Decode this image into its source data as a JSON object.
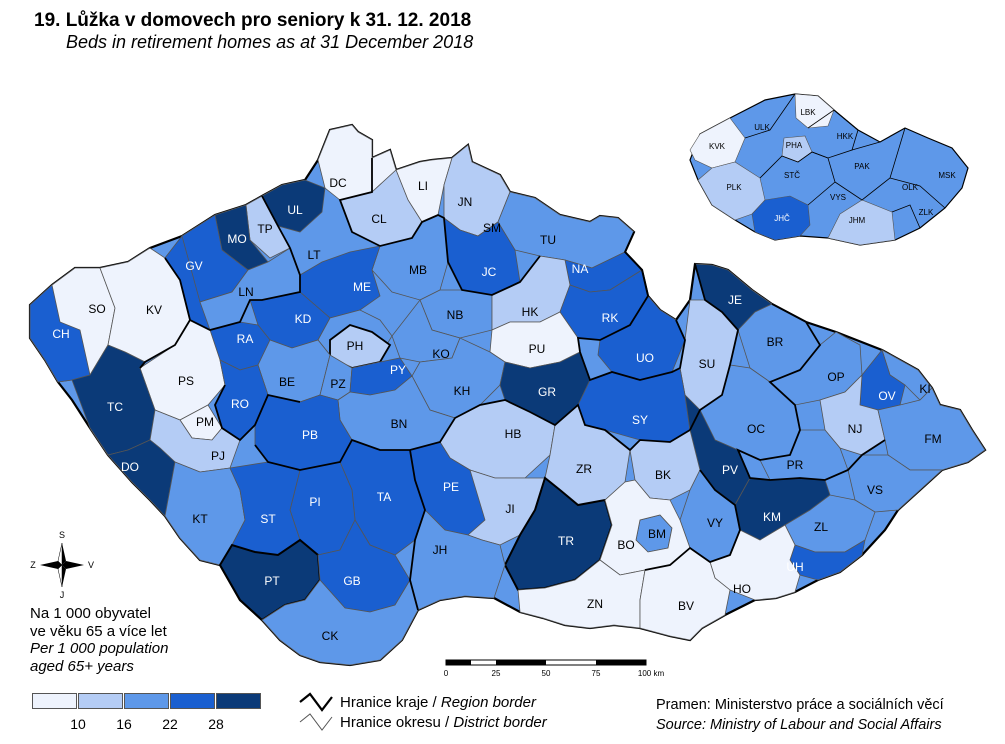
{
  "title": "19. Lůžka v domovech pro seniory k 31. 12. 2018",
  "subtitle": "Beds in retirement homes as at 31 December 2018",
  "legend": {
    "unit_cz_1": "Na 1 000 obyvatel",
    "unit_cz_2": "ve věku 65 a více let",
    "unit_en_1": "Per 1 000 population",
    "unit_en_2": "aged 65+ years",
    "classes": [
      "#eef3fd",
      "#b4ccf5",
      "#5e98e9",
      "#1a5fd0",
      "#0b3a78"
    ],
    "ticks": [
      "10",
      "16",
      "22",
      "28"
    ]
  },
  "borders": {
    "region_cz": "Hranice kraje /",
    "region_en": "Region border",
    "district_cz": "Hranice okresu /",
    "district_en": "District border"
  },
  "source": {
    "cz": "Pramen: Ministerstvo práce a sociálních věcí",
    "en": "Source: Ministry of Labour and Social Affairs"
  },
  "scale": {
    "ticks": [
      "0",
      "25",
      "50",
      "75",
      "100 km"
    ]
  },
  "compass": {
    "n": "S",
    "s": "J",
    "w": "Z",
    "e": "V"
  },
  "districts": [
    {
      "code": "DC",
      "cls": 0
    },
    {
      "code": "LI",
      "cls": 0
    },
    {
      "code": "JN",
      "cls": 1
    },
    {
      "code": "UL",
      "cls": 4
    },
    {
      "code": "TP",
      "cls": 1
    },
    {
      "code": "MO",
      "cls": 4
    },
    {
      "code": "CL",
      "cls": 1
    },
    {
      "code": "SM",
      "cls": 1
    },
    {
      "code": "LT",
      "cls": 2
    },
    {
      "code": "GV",
      "cls": 3
    },
    {
      "code": "TU",
      "cls": 2
    },
    {
      "code": "MB",
      "cls": 2
    },
    {
      "code": "JC",
      "cls": 3
    },
    {
      "code": "NA",
      "cls": 3
    },
    {
      "code": "SO",
      "cls": 1
    },
    {
      "code": "KV",
      "cls": 0
    },
    {
      "code": "LN",
      "cls": 2
    },
    {
      "code": "ME",
      "cls": 3
    },
    {
      "code": "CH",
      "cls": 3
    },
    {
      "code": "KD",
      "cls": 3
    },
    {
      "code": "NB",
      "cls": 2
    },
    {
      "code": "HK",
      "cls": 1
    },
    {
      "code": "RK",
      "cls": 3
    },
    {
      "code": "RA",
      "cls": 3
    },
    {
      "code": "PH",
      "cls": 1
    },
    {
      "code": "KO",
      "cls": 2
    },
    {
      "code": "PU",
      "cls": 0
    },
    {
      "code": "JE",
      "cls": 4
    },
    {
      "code": "UO",
      "cls": 3
    },
    {
      "code": "BR",
      "cls": 2
    },
    {
      "code": "PS",
      "cls": 0
    },
    {
      "code": "BE",
      "cls": 2
    },
    {
      "code": "PZ",
      "cls": 2
    },
    {
      "code": "PY",
      "cls": 3
    },
    {
      "code": "SU",
      "cls": 1
    },
    {
      "code": "TC",
      "cls": 4
    },
    {
      "code": "RO",
      "cls": 3
    },
    {
      "code": "KH",
      "cls": 2
    },
    {
      "code": "GR",
      "cls": 4
    },
    {
      "code": "OP",
      "cls": 2
    },
    {
      "code": "KI",
      "cls": 2
    },
    {
      "code": "PM",
      "cls": 0
    },
    {
      "code": "OV",
      "cls": 3
    },
    {
      "code": "BN",
      "cls": 2
    },
    {
      "code": "SY",
      "cls": 3
    },
    {
      "code": "PB",
      "cls": 3
    },
    {
      "code": "HB",
      "cls": 1
    },
    {
      "code": "OC",
      "cls": 2
    },
    {
      "code": "NJ",
      "cls": 1
    },
    {
      "code": "FM",
      "cls": 2
    },
    {
      "code": "PJ",
      "cls": 1
    },
    {
      "code": "PV",
      "cls": 4
    },
    {
      "code": "ZR",
      "cls": 1
    },
    {
      "code": "PR",
      "cls": 2
    },
    {
      "code": "BK",
      "cls": 1
    },
    {
      "code": "DO",
      "cls": 4
    },
    {
      "code": "PE",
      "cls": 3
    },
    {
      "code": "TA",
      "cls": 3
    },
    {
      "code": "VS",
      "cls": 2
    },
    {
      "code": "PI",
      "cls": 3
    },
    {
      "code": "KM",
      "cls": 4
    },
    {
      "code": "KT",
      "cls": 2
    },
    {
      "code": "ST",
      "cls": 3
    },
    {
      "code": "JI",
      "cls": 1
    },
    {
      "code": "ZL",
      "cls": 2
    },
    {
      "code": "BM",
      "cls": 2
    },
    {
      "code": "VY",
      "cls": 2
    },
    {
      "code": "TR",
      "cls": 4
    },
    {
      "code": "BO",
      "cls": 0
    },
    {
      "code": "JH",
      "cls": 2
    },
    {
      "code": "UH",
      "cls": 3
    },
    {
      "code": "PT",
      "cls": 4
    },
    {
      "code": "GB",
      "cls": 3
    },
    {
      "code": "HO",
      "cls": 0
    },
    {
      "code": "ZN",
      "cls": 0
    },
    {
      "code": "BV",
      "cls": 0
    },
    {
      "code": "CK",
      "cls": 2
    }
  ],
  "regions": [
    {
      "code": "LBK",
      "cls": 0
    },
    {
      "code": "ULK",
      "cls": 2
    },
    {
      "code": "KVK",
      "cls": 0
    },
    {
      "code": "PHA",
      "cls": 1
    },
    {
      "code": "HKK",
      "cls": 2
    },
    {
      "code": "MSK",
      "cls": 2
    },
    {
      "code": "PAK",
      "cls": 2
    },
    {
      "code": "STČ",
      "cls": 2
    },
    {
      "code": "OLK",
      "cls": 2
    },
    {
      "code": "PLK",
      "cls": 1
    },
    {
      "code": "VYS",
      "cls": 2
    },
    {
      "code": "ZLK",
      "cls": 2
    },
    {
      "code": "JHČ",
      "cls": 3
    },
    {
      "code": "JHM",
      "cls": 1
    }
  ]
}
